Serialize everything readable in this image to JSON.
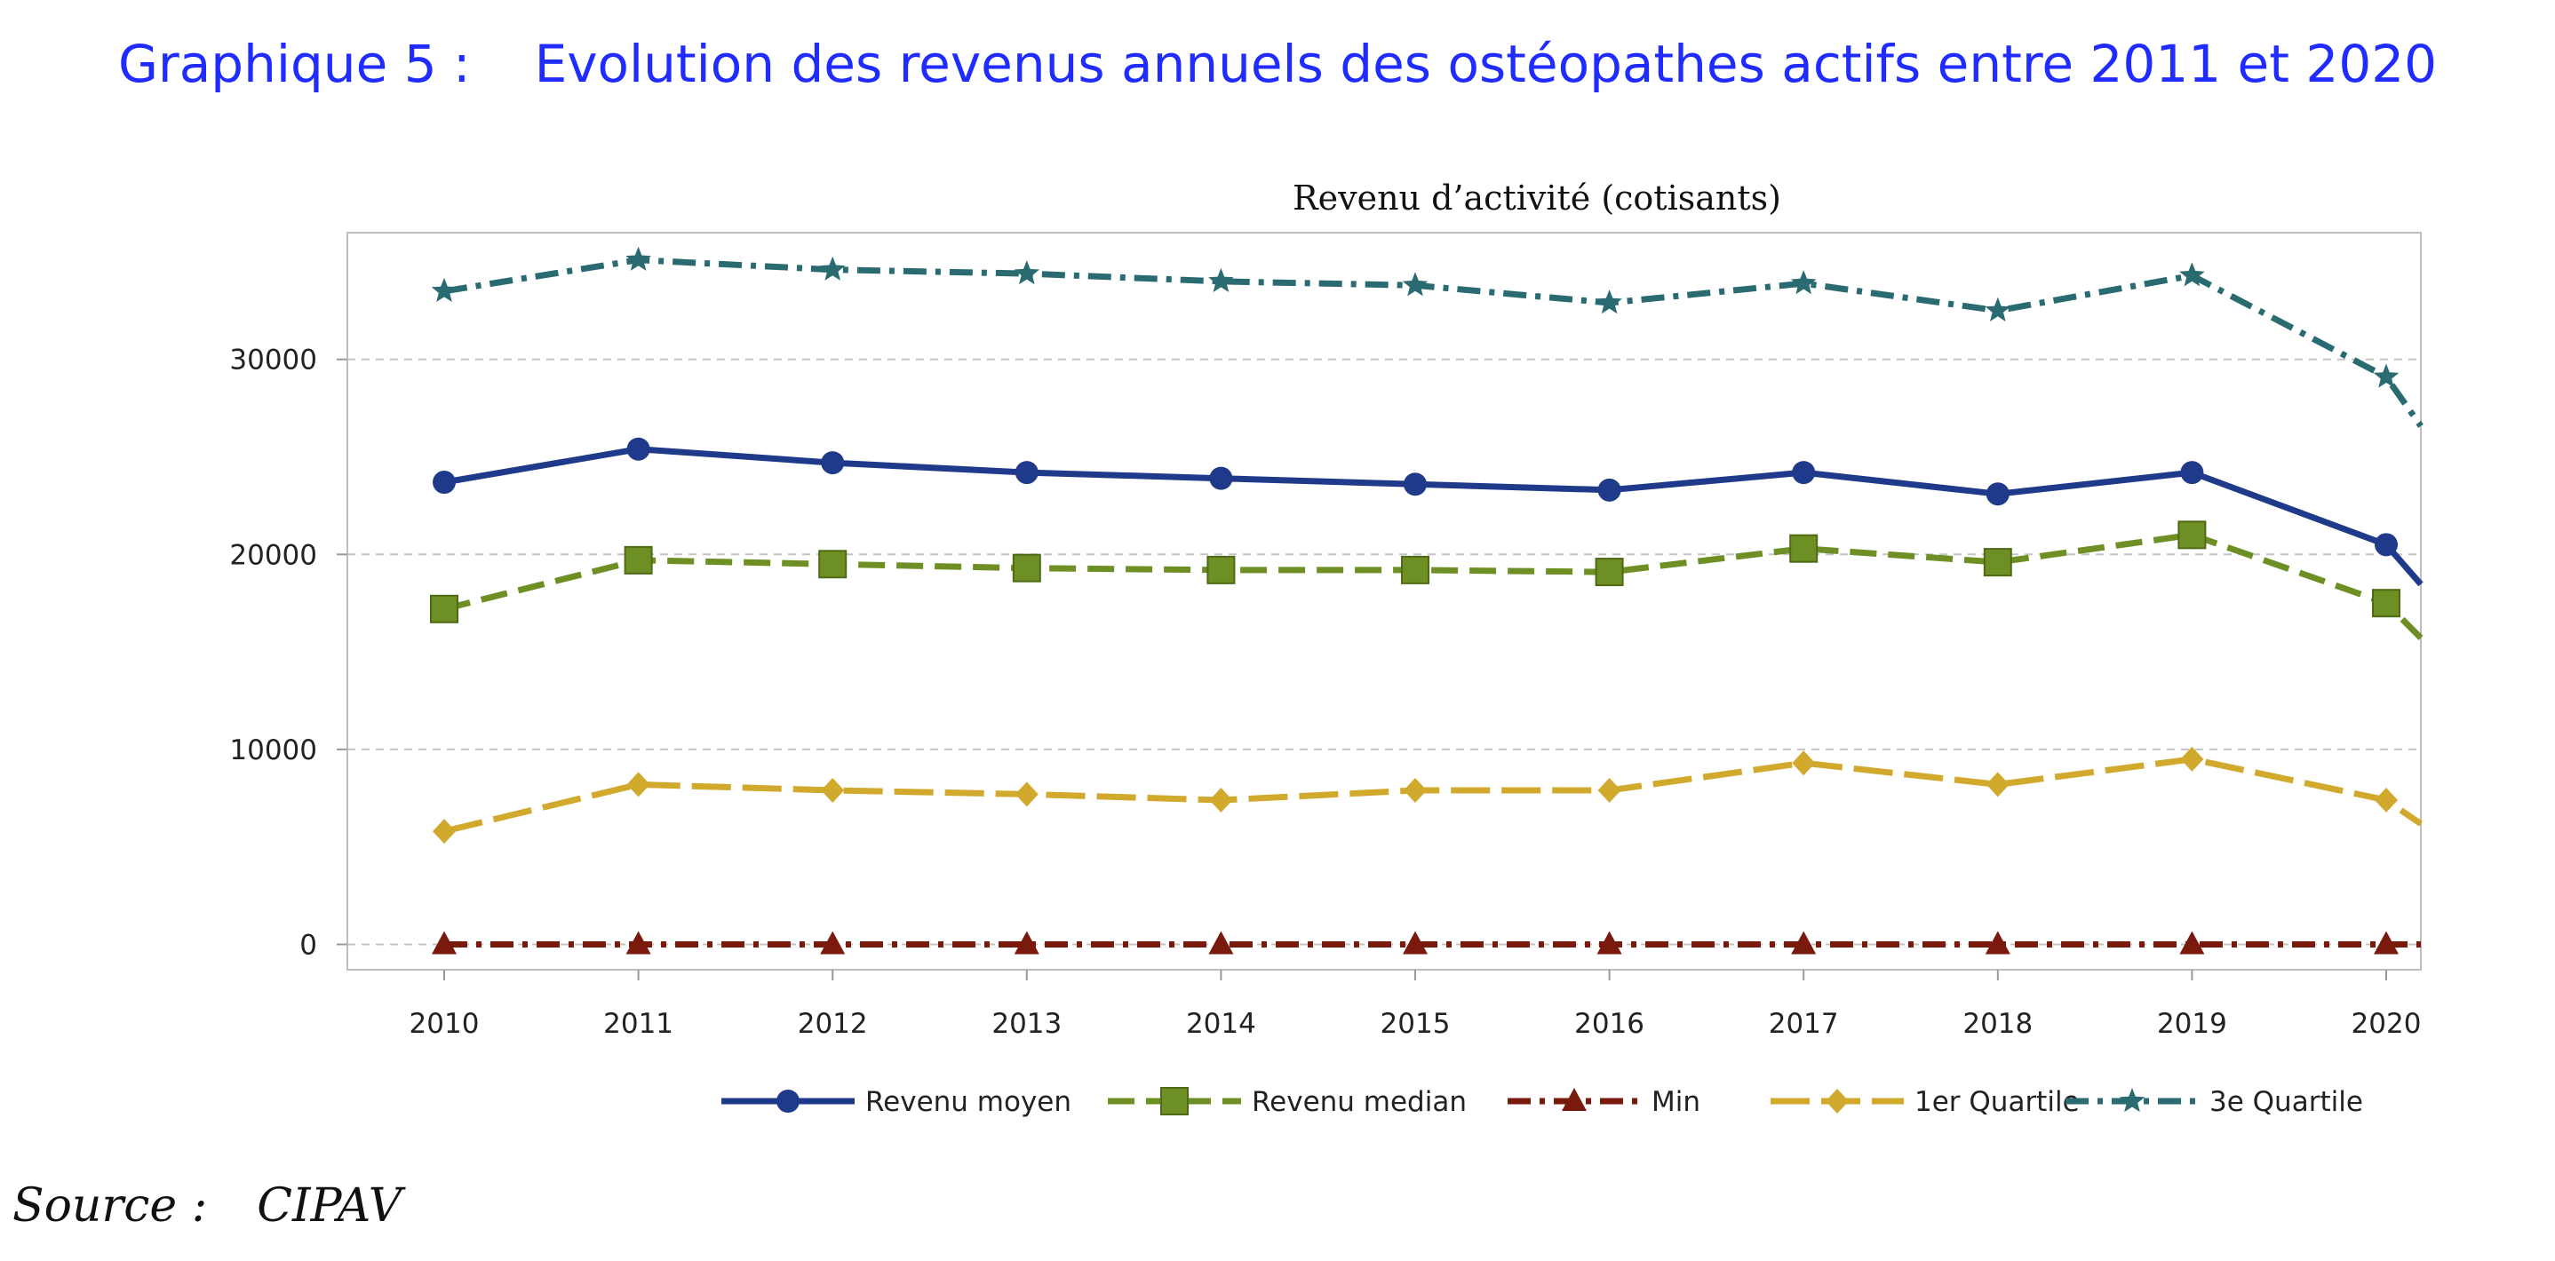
{
  "figure": {
    "label": "Graphique 5 :",
    "title": "Evolution des revenus annuels des ostéopathes actifs entre 2011 et 2020",
    "source_label": "Source :",
    "source_value": "CIPAV"
  },
  "chart_data": {
    "type": "line",
    "title": "Revenu d’activité (cotisants)",
    "xlabel": "",
    "ylabel": "",
    "x": [
      2010,
      2011,
      2012,
      2013,
      2014,
      2015,
      2016,
      2017,
      2018,
      2019,
      2020
    ],
    "x_ticks": [
      "2010",
      "2011",
      "2012",
      "2013",
      "2014",
      "2015",
      "2016",
      "2017",
      "2018",
      "2019",
      "2020"
    ],
    "y_ticks": [
      "0",
      "10000",
      "20000",
      "30000"
    ],
    "ylim": [
      -1300,
      36500
    ],
    "grid": "horizontal dashed",
    "legend_position": "bottom",
    "series": [
      {
        "name": "Revenu moyen",
        "color": "#1f3a8a",
        "marker": "circle",
        "line": "solid",
        "values": [
          23700,
          25400,
          24700,
          24200,
          23900,
          23600,
          23300,
          24200,
          23100,
          24200,
          20500
        ],
        "tail_value": 18000
      },
      {
        "name": "Revenu median",
        "color": "#6e8f23",
        "marker": "square",
        "line": "dashed",
        "values": [
          17200,
          19700,
          19500,
          19300,
          19200,
          19200,
          19100,
          20300,
          19600,
          21000,
          17500
        ],
        "tail_value": 15300
      },
      {
        "name": "Min",
        "color": "#7a1a0c",
        "marker": "triangle",
        "line": "dashdot",
        "values": [
          0,
          0,
          0,
          0,
          0,
          0,
          0,
          0,
          0,
          0,
          0
        ],
        "tail_value": 0
      },
      {
        "name": "1er Quartile",
        "color": "#d1a92c",
        "marker": "diamond",
        "line": "longdash",
        "values": [
          5800,
          8200,
          7900,
          7700,
          7400,
          7900,
          7900,
          9300,
          8200,
          9500,
          7400
        ],
        "tail_value": 5900
      },
      {
        "name": "3e Quartile",
        "color": "#2a6b72",
        "marker": "star",
        "line": "dashdot",
        "values": [
          33500,
          35100,
          34600,
          34400,
          34000,
          33800,
          32900,
          33900,
          32500,
          34300,
          29100
        ],
        "tail_value": 26000
      }
    ]
  }
}
